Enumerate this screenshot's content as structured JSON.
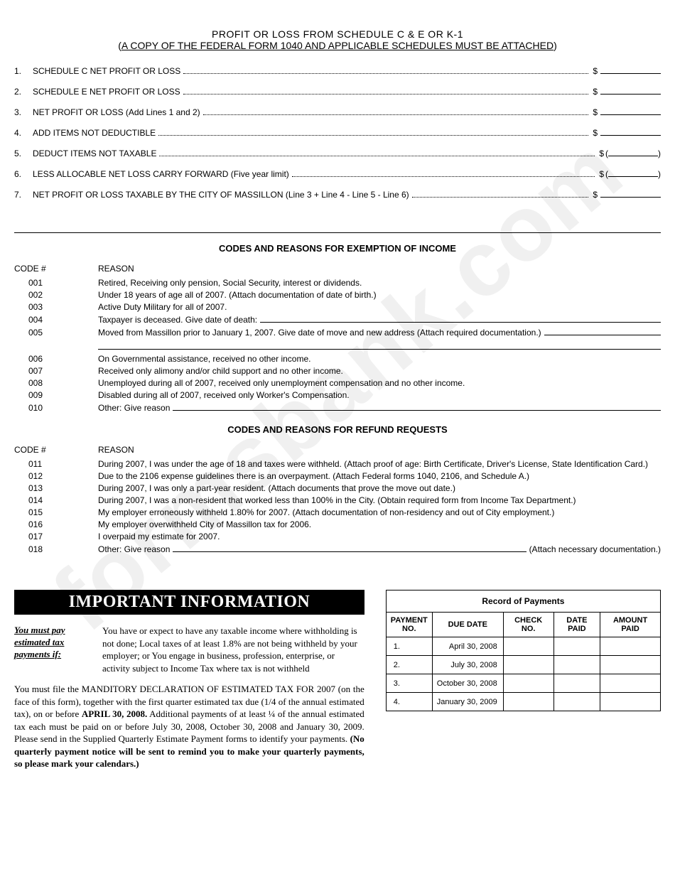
{
  "header": {
    "title": "PROFIT OR LOSS FROM SCHEDULE C & E OR K-1",
    "subtitle_open": "(",
    "subtitle_underline": "A COPY OF THE FEDERAL FORM 1040 AND APPLICABLE SCHEDULES MUST BE  ATTACHED",
    "subtitle_close": ")"
  },
  "watermark": "formsbank.com",
  "profit_loss_lines": [
    {
      "num": "1.",
      "label": "SCHEDULE C NET PROFIT OR LOSS",
      "paren": false
    },
    {
      "num": "2.",
      "label": "SCHEDULE E NET PROFIT OR LOSS",
      "paren": false
    },
    {
      "num": "3.",
      "label": "NET PROFIT OR LOSS (Add Lines 1 and 2)",
      "paren": false
    },
    {
      "num": "4.",
      "label": "ADD ITEMS NOT DEDUCTIBLE",
      "paren": false
    },
    {
      "num": "5.",
      "label": "DEDUCT ITEMS NOT TAXABLE",
      "paren": true
    },
    {
      "num": "6.",
      "label": "LESS ALLOCABLE NET LOSS CARRY FORWARD (Five year limit)",
      "paren": true
    },
    {
      "num": "7.",
      "label": "NET PROFIT OR LOSS TAXABLE BY THE CITY OF MASSILLON (Line 3 + Line 4 - Line 5 - Line 6)",
      "paren": false
    }
  ],
  "exemption": {
    "title": "CODES AND REASONS FOR EXEMPTION OF INCOME",
    "code_header": "CODE #",
    "reason_header": "REASON",
    "rows": [
      {
        "code": "001",
        "reason": "Retired, Receiving only pension, Social Security, interest or dividends.",
        "fill": false
      },
      {
        "code": "002",
        "reason": "Under 18 years of age all of 2007. (Attach documentation of date of birth.)",
        "fill": false
      },
      {
        "code": "003",
        "reason": "Active Duty Military for all of 2007.",
        "fill": false
      },
      {
        "code": "004",
        "reason": "Taxpayer is deceased. Give date of death:",
        "fill": true
      },
      {
        "code": "005",
        "reason": "Moved from Massillon prior to January 1, 2007. Give date of move and new address (Attach required documentation.)",
        "fill": true,
        "extra_line": true
      },
      {
        "code": "006",
        "reason": "On Governmental assistance, received no other income.",
        "fill": false
      },
      {
        "code": "007",
        "reason": "Received only alimony and/or child support and no other income.",
        "fill": false
      },
      {
        "code": "008",
        "reason": "Unemployed during all of 2007, received only unemployment compensation and no other income.",
        "fill": false
      },
      {
        "code": "009",
        "reason": "Disabled during all of 2007, received only Worker's Compensation.",
        "fill": false
      },
      {
        "code": "010",
        "reason": "Other: Give reason",
        "fill": true
      }
    ]
  },
  "refund": {
    "title": "CODES AND REASONS FOR REFUND REQUESTS",
    "code_header": "CODE #",
    "reason_header": "REASON",
    "rows": [
      {
        "code": "011",
        "reason": "During 2007, I was under the age of 18 and taxes were withheld. (Attach proof of age: Birth Certificate, Driver's License, State Identification Card.)"
      },
      {
        "code": "012",
        "reason": "Due to the 2106 expense guidelines there is an overpayment. (Attach Federal forms 1040, 2106, and Schedule A.)"
      },
      {
        "code": "013",
        "reason": "During 2007, I was only a part-year resident. (Attach documents that prove the move out date.)"
      },
      {
        "code": "014",
        "reason": "During 2007, I was a non-resident that worked less than 100% in the City. (Obtain required form from Income Tax Department.)"
      },
      {
        "code": "015",
        "reason": "My employer erroneously withheld 1.80% for 2007. (Attach documentation of non-residency and out of City employment.)"
      },
      {
        "code": "016",
        "reason": "My employer overwithheld City of Massillon tax for 2006."
      },
      {
        "code": "017",
        "reason": "I overpaid my estimate for 2007."
      },
      {
        "code": "018",
        "reason": "Other: Give reason",
        "fill": true,
        "tail": "(Attach necessary documentation.)"
      }
    ]
  },
  "info": {
    "banner": "IMPORTANT INFORMATION",
    "lead1": "You must pay",
    "lead2": "estimated tax",
    "lead3": "payments if:",
    "text1": "You have or expect to have any taxable income where withholding is not done; Local taxes of at least 1.8% are not being withheld by your employer; or You engage in business, profession, enterprise, or activity subject to Income Tax where tax is not withheld",
    "para_a": "You must file the MANDITORY DECLARATION OF ESTIMATED TAX FOR 2007 (on the face of this form), together with the first quarter estimated tax due (1/4 of the annual estimated tax), on or before ",
    "para_b_bold": "APRIL 30, 2008.",
    "para_c": " Additional payments of at least ¼ of the annual estimated tax each must be paid on or before July 30, 2008, October 30, 2008 and January 30, 2009. Please send in the Supplied Quarterly Estimate Payment forms to identify your payments. ",
    "para_d_bold": "(No quarterly payment notice will be sent to remind you to make your quarterly payments, so please mark your calendars.)"
  },
  "payments": {
    "title": "Record of Payments",
    "headers": [
      "PAYMENT NO.",
      "DUE DATE",
      "CHECK NO.",
      "DATE PAID",
      "AMOUNT PAID"
    ],
    "rows": [
      {
        "num": "1.",
        "due": "April 30, 2008"
      },
      {
        "num": "2.",
        "due": "July 30, 2008"
      },
      {
        "num": "3.",
        "due": "October 30, 2008"
      },
      {
        "num": "4.",
        "due": "January 30, 2009"
      }
    ]
  }
}
